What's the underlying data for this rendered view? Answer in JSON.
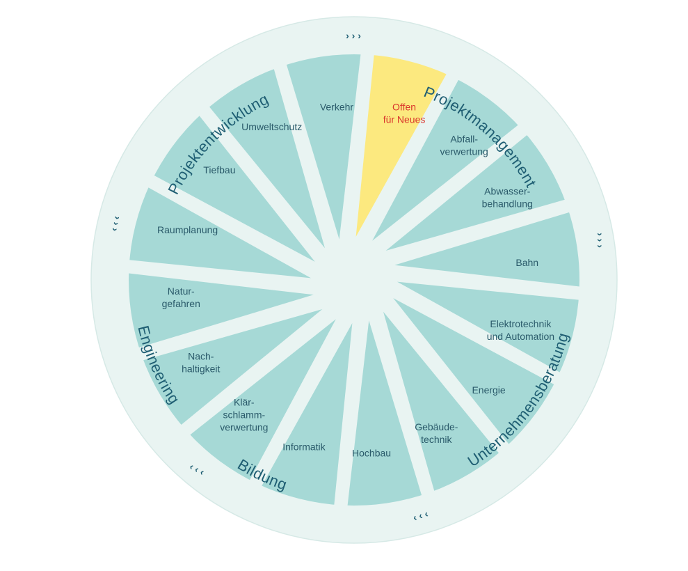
{
  "colors": {
    "outer_ring": "#e9f4f2",
    "outer_ring_stroke": "#d6e9e6",
    "segment": "#a6d9d6",
    "segment_highlight": "#fce97f",
    "text": "#2a5a6a",
    "text_highlight": "#d9342b",
    "ring_text": "#1f5e73",
    "gap": "#e9f4f2"
  },
  "ring_labels": [
    {
      "id": "projektentwicklung",
      "text": "Projektentwicklung"
    },
    {
      "id": "projektmanagement",
      "text": "Projektmanagement"
    },
    {
      "id": "unternehmensberatung",
      "text": "Unternehmensberatung"
    },
    {
      "id": "bildung",
      "text": "Bildung"
    },
    {
      "id": "engineering",
      "text": "Engineering"
    }
  ],
  "chevrons": [
    {
      "id": "top",
      "text": "› › ›"
    },
    {
      "id": "right",
      "text": "› › ›"
    },
    {
      "id": "bottom-right",
      "text": "‹ ‹ ‹"
    },
    {
      "id": "bottom-left",
      "text": "‹ ‹ ‹"
    },
    {
      "id": "left",
      "text": "‹ ‹ ‹"
    }
  ],
  "segments": [
    {
      "id": "offen",
      "lines": [
        "Offen",
        "für Neues"
      ],
      "highlight": true
    },
    {
      "id": "abfall",
      "lines": [
        "Abfall-",
        "verwertung"
      ]
    },
    {
      "id": "abwasser",
      "lines": [
        "Abwasser-",
        "behandlung"
      ]
    },
    {
      "id": "bahn",
      "lines": [
        "Bahn"
      ]
    },
    {
      "id": "elektro",
      "lines": [
        "Elektrotechnik",
        "und Automation"
      ]
    },
    {
      "id": "energie",
      "lines": [
        "Energie"
      ]
    },
    {
      "id": "gebaeude",
      "lines": [
        "Gebäude-",
        "technik"
      ]
    },
    {
      "id": "hochbau",
      "lines": [
        "Hochbau"
      ]
    },
    {
      "id": "informatik",
      "lines": [
        "Informatik"
      ]
    },
    {
      "id": "klaer",
      "lines": [
        "Klär-",
        "schlamm-",
        "verwertung"
      ]
    },
    {
      "id": "nachhaltigkeit",
      "lines": [
        "Nach-",
        "haltigkeit"
      ]
    },
    {
      "id": "natur",
      "lines": [
        "Natur-",
        "gefahren"
      ]
    },
    {
      "id": "raumplanung",
      "lines": [
        "Raumplanung"
      ]
    },
    {
      "id": "tiefbau",
      "lines": [
        "Tiefbau"
      ]
    },
    {
      "id": "umweltschutz",
      "lines": [
        "Umweltschutz"
      ]
    },
    {
      "id": "verkehr",
      "lines": [
        "Verkehr"
      ]
    }
  ]
}
